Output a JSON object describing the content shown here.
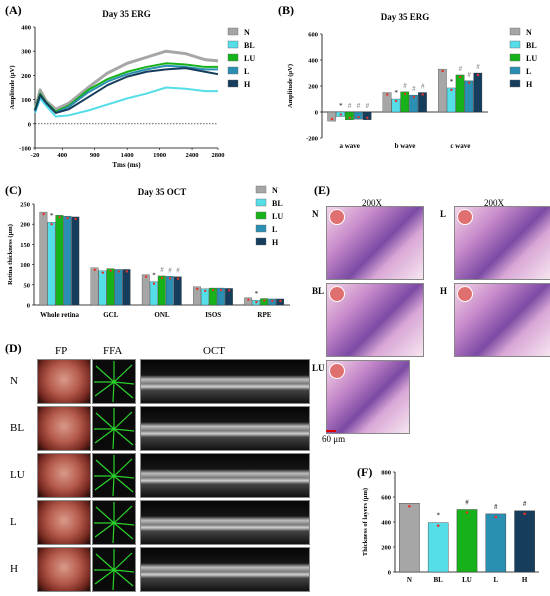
{
  "panel_labels": {
    "A": "(A)",
    "B": "(B)",
    "C": "(C)",
    "D": "(D)",
    "E": "(E)",
    "F": "(F)"
  },
  "colors": {
    "N": "#a6a6a6",
    "BL": "#55dde8",
    "LU": "#17b21a",
    "L": "#2a8fb3",
    "H": "#163d5c",
    "dot": "#e8302a"
  },
  "chart_data": [
    {
      "id": "A",
      "type": "line",
      "title": "Day 35 ERG",
      "xlabel": "Tms (ms)",
      "ylabel": "Amplitude (μV)",
      "xlim": [
        -20,
        2800
      ],
      "ylim": [
        -100,
        400
      ],
      "x_ticks": [
        "-20",
        "400",
        "900",
        "1400",
        "1900",
        "2400",
        "2800"
      ],
      "y_ticks": [
        "-100",
        "0",
        "100",
        "200",
        "300",
        "400"
      ],
      "legend_position": "right",
      "x": [
        -20,
        60,
        150,
        300,
        500,
        800,
        1100,
        1400,
        1700,
        2000,
        2300,
        2600,
        2800
      ],
      "series": [
        {
          "name": "N",
          "values": [
            55,
            140,
            95,
            60,
            85,
            150,
            210,
            250,
            275,
            300,
            290,
            265,
            260
          ]
        },
        {
          "name": "BL",
          "values": [
            45,
            105,
            75,
            30,
            35,
            55,
            80,
            105,
            125,
            150,
            145,
            135,
            135
          ]
        },
        {
          "name": "LU",
          "values": [
            60,
            125,
            90,
            50,
            75,
            140,
            185,
            215,
            235,
            250,
            245,
            235,
            235
          ]
        },
        {
          "name": "L",
          "values": [
            50,
            115,
            85,
            45,
            70,
            130,
            175,
            205,
            225,
            240,
            235,
            225,
            225
          ]
        },
        {
          "name": "H",
          "values": [
            55,
            120,
            88,
            45,
            60,
            110,
            160,
            195,
            215,
            225,
            230,
            215,
            205
          ]
        }
      ]
    },
    {
      "id": "B",
      "type": "bar",
      "title": "Day 35 ERG",
      "ylabel": "Amplitude (μV)",
      "ylim": [
        -200,
        600
      ],
      "y_ticks": [
        "-200",
        "0",
        "200",
        "400",
        "600"
      ],
      "categories": [
        "a wave",
        "b wave",
        "c wave"
      ],
      "legend_position": "right",
      "series": [
        {
          "name": "N",
          "values": [
            -70,
            150,
            330
          ]
        },
        {
          "name": "BL",
          "values": [
            -35,
            100,
            185
          ]
        },
        {
          "name": "LU",
          "values": [
            -60,
            155,
            285
          ]
        },
        {
          "name": "L",
          "values": [
            -55,
            130,
            240
          ]
        },
        {
          "name": "H",
          "values": [
            -60,
            150,
            300
          ]
        }
      ],
      "annotations": [
        [
          "",
          "*",
          "#",
          "#",
          "#"
        ],
        [
          "",
          "*",
          "#",
          "#",
          "#"
        ],
        [
          "",
          "*",
          "#",
          "#",
          "#"
        ]
      ]
    },
    {
      "id": "C",
      "type": "bar",
      "title": "Day 35 OCT",
      "ylabel": "Retina thickness (μm)",
      "ylim": [
        0,
        250
      ],
      "y_ticks": [
        "0",
        "50",
        "100",
        "150",
        "200",
        "250"
      ],
      "categories": [
        "Whole retina",
        "GCL",
        "ONL",
        "ISOS",
        "RPE"
      ],
      "legend_position": "right",
      "series": [
        {
          "name": "N",
          "values": [
            230,
            92,
            75,
            45,
            18
          ]
        },
        {
          "name": "BL",
          "values": [
            205,
            85,
            58,
            40,
            12
          ]
        },
        {
          "name": "LU",
          "values": [
            222,
            90,
            72,
            42,
            16
          ]
        },
        {
          "name": "L",
          "values": [
            220,
            88,
            71,
            42,
            15
          ]
        },
        {
          "name": "H",
          "values": [
            218,
            88,
            70,
            41,
            15
          ]
        }
      ],
      "annotations": [
        [
          "",
          "*",
          "",
          "",
          ""
        ],
        [
          "",
          "",
          "",
          "",
          ""
        ],
        [
          "",
          "*",
          "#",
          "#",
          "#"
        ],
        [
          "",
          "",
          "",
          "",
          ""
        ],
        [
          "",
          "*",
          "",
          "",
          ""
        ]
      ]
    },
    {
      "id": "F",
      "type": "bar",
      "ylabel": "Thickness of layers (μm)",
      "ylim": [
        0,
        800
      ],
      "y_ticks": [
        "0",
        "200",
        "400",
        "600",
        "800"
      ],
      "categories": [
        "N",
        "BL",
        "LU",
        "L",
        "H"
      ],
      "values": [
        550,
        395,
        500,
        465,
        490
      ],
      "annotations": [
        "",
        "*",
        "#",
        "#",
        "#"
      ]
    }
  ],
  "panel_D": {
    "columns": [
      "FP",
      "FFA",
      "OCT"
    ],
    "rows": [
      "N",
      "BL",
      "LU",
      "L",
      "H"
    ]
  },
  "panel_E": {
    "magnification": "200X",
    "magnification_right": "200X",
    "labels": [
      "N",
      "BL",
      "LU",
      "L",
      "H"
    ],
    "scale_bar": "60 μm"
  }
}
